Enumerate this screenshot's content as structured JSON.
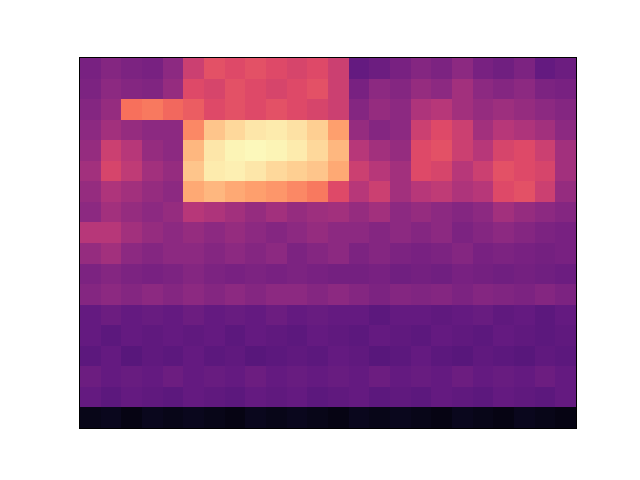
{
  "chart_data": {
    "type": "heatmap",
    "color": "magma",
    "tick_labels": false,
    "zlim": [
      0,
      1
    ],
    "z": [
      [
        0.35,
        0.38,
        0.36,
        0.35,
        0.4,
        0.55,
        0.62,
        0.6,
        0.62,
        0.6,
        0.58,
        0.6,
        0.55,
        0.3,
        0.32,
        0.35,
        0.38,
        0.36,
        0.4,
        0.35,
        0.33,
        0.36,
        0.3,
        0.32
      ],
      [
        0.36,
        0.4,
        0.38,
        0.37,
        0.42,
        0.6,
        0.58,
        0.62,
        0.6,
        0.58,
        0.6,
        0.62,
        0.55,
        0.35,
        0.4,
        0.38,
        0.42,
        0.4,
        0.45,
        0.4,
        0.38,
        0.4,
        0.36,
        0.35
      ],
      [
        0.38,
        0.42,
        0.7,
        0.72,
        0.68,
        0.65,
        0.6,
        0.62,
        0.6,
        0.62,
        0.6,
        0.58,
        0.55,
        0.38,
        0.42,
        0.4,
        0.48,
        0.5,
        0.45,
        0.42,
        0.44,
        0.42,
        0.4,
        0.38
      ],
      [
        0.4,
        0.45,
        0.42,
        0.4,
        0.4,
        0.75,
        0.88,
        0.92,
        0.95,
        0.96,
        0.94,
        0.9,
        0.8,
        0.42,
        0.38,
        0.4,
        0.55,
        0.6,
        0.55,
        0.45,
        0.5,
        0.48,
        0.45,
        0.4
      ],
      [
        0.42,
        0.55,
        0.5,
        0.42,
        0.4,
        0.85,
        0.95,
        0.98,
        0.99,
        0.98,
        0.96,
        0.92,
        0.85,
        0.5,
        0.45,
        0.42,
        0.6,
        0.62,
        0.55,
        0.5,
        0.58,
        0.6,
        0.55,
        0.45
      ],
      [
        0.45,
        0.58,
        0.52,
        0.45,
        0.42,
        0.88,
        0.96,
        0.97,
        0.95,
        0.92,
        0.9,
        0.88,
        0.82,
        0.55,
        0.5,
        0.45,
        0.6,
        0.58,
        0.5,
        0.55,
        0.62,
        0.6,
        0.58,
        0.45
      ],
      [
        0.42,
        0.48,
        0.45,
        0.42,
        0.4,
        0.82,
        0.85,
        0.82,
        0.8,
        0.78,
        0.75,
        0.72,
        0.6,
        0.5,
        0.55,
        0.45,
        0.5,
        0.52,
        0.48,
        0.5,
        0.6,
        0.62,
        0.55,
        0.42
      ],
      [
        0.4,
        0.45,
        0.42,
        0.4,
        0.42,
        0.5,
        0.48,
        0.45,
        0.42,
        0.45,
        0.42,
        0.44,
        0.45,
        0.42,
        0.45,
        0.4,
        0.42,
        0.4,
        0.38,
        0.4,
        0.45,
        0.42,
        0.4,
        0.38
      ],
      [
        0.5,
        0.5,
        0.45,
        0.42,
        0.4,
        0.42,
        0.4,
        0.42,
        0.4,
        0.38,
        0.4,
        0.42,
        0.4,
        0.4,
        0.38,
        0.4,
        0.38,
        0.4,
        0.36,
        0.38,
        0.4,
        0.38,
        0.36,
        0.35
      ],
      [
        0.42,
        0.45,
        0.4,
        0.38,
        0.4,
        0.4,
        0.38,
        0.4,
        0.38,
        0.4,
        0.36,
        0.38,
        0.4,
        0.36,
        0.38,
        0.36,
        0.35,
        0.36,
        0.38,
        0.35,
        0.36,
        0.35,
        0.34,
        0.35
      ],
      [
        0.36,
        0.38,
        0.36,
        0.35,
        0.36,
        0.38,
        0.36,
        0.35,
        0.36,
        0.35,
        0.36,
        0.35,
        0.34,
        0.34,
        0.35,
        0.33,
        0.34,
        0.33,
        0.35,
        0.34,
        0.33,
        0.34,
        0.33,
        0.32
      ],
      [
        0.38,
        0.4,
        0.38,
        0.4,
        0.38,
        0.4,
        0.38,
        0.4,
        0.38,
        0.4,
        0.4,
        0.38,
        0.4,
        0.38,
        0.36,
        0.38,
        0.37,
        0.38,
        0.36,
        0.38,
        0.37,
        0.36,
        0.38,
        0.36
      ],
      [
        0.3,
        0.32,
        0.3,
        0.31,
        0.3,
        0.32,
        0.3,
        0.31,
        0.3,
        0.32,
        0.3,
        0.31,
        0.3,
        0.3,
        0.28,
        0.3,
        0.3,
        0.29,
        0.3,
        0.31,
        0.29,
        0.3,
        0.28,
        0.3
      ],
      [
        0.3,
        0.28,
        0.3,
        0.29,
        0.3,
        0.29,
        0.3,
        0.28,
        0.3,
        0.29,
        0.28,
        0.3,
        0.29,
        0.28,
        0.3,
        0.29,
        0.28,
        0.3,
        0.29,
        0.28,
        0.3,
        0.29,
        0.28,
        0.29
      ],
      [
        0.28,
        0.3,
        0.27,
        0.29,
        0.28,
        0.3,
        0.28,
        0.29,
        0.27,
        0.28,
        0.29,
        0.28,
        0.3,
        0.29,
        0.27,
        0.28,
        0.3,
        0.28,
        0.27,
        0.29,
        0.28,
        0.27,
        0.29,
        0.28
      ],
      [
        0.32,
        0.3,
        0.31,
        0.3,
        0.32,
        0.3,
        0.31,
        0.3,
        0.32,
        0.3,
        0.31,
        0.3,
        0.31,
        0.3,
        0.32,
        0.3,
        0.31,
        0.3,
        0.32,
        0.3,
        0.31,
        0.3,
        0.32,
        0.3
      ],
      [
        0.3,
        0.28,
        0.3,
        0.29,
        0.28,
        0.3,
        0.29,
        0.28,
        0.3,
        0.29,
        0.3,
        0.28,
        0.29,
        0.3,
        0.28,
        0.29,
        0.28,
        0.3,
        0.29,
        0.28,
        0.3,
        0.29,
        0.28,
        0.3
      ],
      [
        0.04,
        0.05,
        0.03,
        0.05,
        0.04,
        0.05,
        0.04,
        0.03,
        0.05,
        0.04,
        0.05,
        0.04,
        0.03,
        0.05,
        0.04,
        0.05,
        0.04,
        0.03,
        0.05,
        0.04,
        0.03,
        0.05,
        0.04,
        0.03
      ]
    ]
  }
}
